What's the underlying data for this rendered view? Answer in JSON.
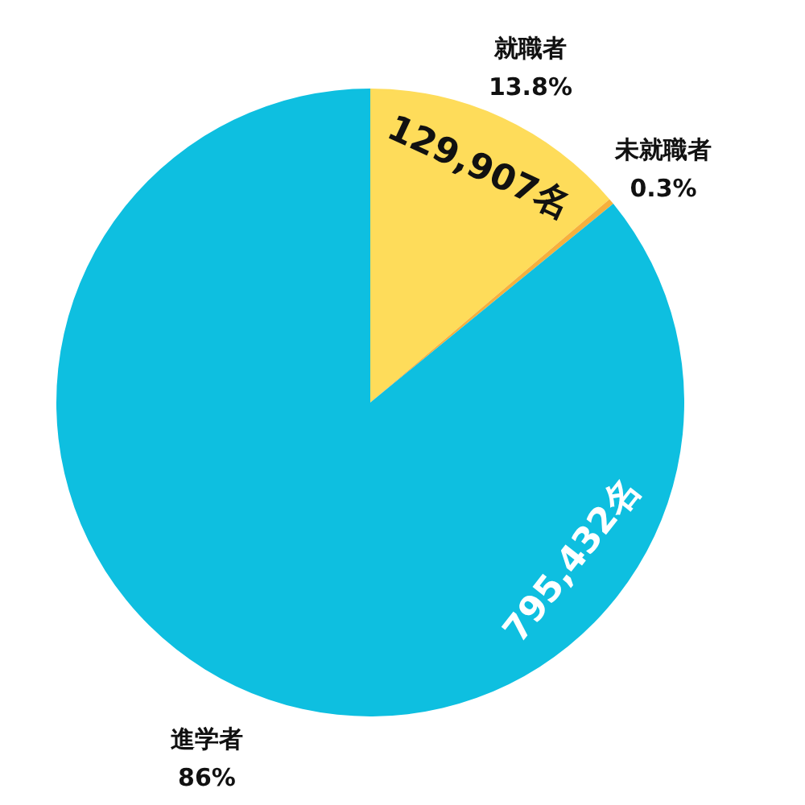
{
  "chart_data": {
    "type": "pie",
    "categories": [
      "就職者",
      "未就職者",
      "進学者"
    ],
    "values": [
      13.8,
      0.3,
      86
    ],
    "colors": [
      "#fedc5a",
      "#f6b03c",
      "#0ebfe0"
    ],
    "value_labels": [
      "13.8%",
      "0.3%",
      "86%"
    ],
    "annotations": [
      "129,907名",
      "795,432名"
    ]
  }
}
